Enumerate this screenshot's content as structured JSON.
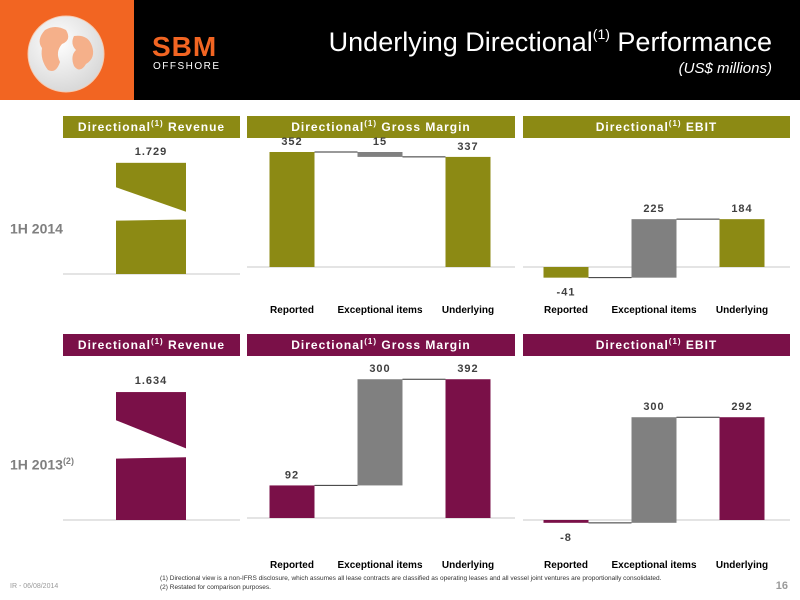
{
  "header": {
    "title_main": "Underlying Directional",
    "title_sup": "(1)",
    "title_tail": " Performance",
    "subtitle": "(US$ millions)",
    "logo_top": "SBM",
    "logo_bottom": "OFFSHORE"
  },
  "colors": {
    "olive": "#8c8a14",
    "plum": "#7a1048",
    "gray": "#808080",
    "orange": "#f26522"
  },
  "rows": [
    {
      "label": "1H 2014",
      "label_sup": ""
    },
    {
      "label": "1H 2013",
      "label_sup": "(2)"
    }
  ],
  "panel_titles": {
    "revenue": {
      "text": "Directional",
      "sup": "(1)",
      "tail": " Revenue"
    },
    "gross_margin": {
      "text": "Directional",
      "sup": "(1)",
      "tail": " Gross Margin"
    },
    "ebit": {
      "text": "Directional",
      "sup": "(1)",
      "tail": " EBIT"
    }
  },
  "chart_data": [
    {
      "type": "bar",
      "row": "1H 2014",
      "panel": "Directional Revenue",
      "categories": [
        ""
      ],
      "values": [
        1729
      ],
      "value_labels": [
        "1.729"
      ],
      "axis_break": true
    },
    {
      "type": "bar",
      "row": "1H 2014",
      "panel": "Directional Gross Margin",
      "waterfall": true,
      "categories": [
        "Reported",
        "Exceptional items",
        "Underlying"
      ],
      "values": [
        352,
        -15,
        337
      ],
      "value_labels": [
        "352",
        "15",
        "337"
      ]
    },
    {
      "type": "bar",
      "row": "1H 2014",
      "panel": "Directional EBIT",
      "waterfall": true,
      "categories": [
        "Reported",
        "Exceptional items",
        "Underlying"
      ],
      "values": [
        -41,
        225,
        184
      ],
      "value_labels": [
        "-41",
        "225",
        "184"
      ]
    },
    {
      "type": "bar",
      "row": "1H 2013",
      "panel": "Directional Revenue",
      "categories": [
        ""
      ],
      "values": [
        1634
      ],
      "value_labels": [
        "1.634"
      ],
      "axis_break": true
    },
    {
      "type": "bar",
      "row": "1H 2013",
      "panel": "Directional Gross Margin",
      "waterfall": true,
      "categories": [
        "Reported",
        "Exceptional items",
        "Underlying"
      ],
      "values": [
        92,
        300,
        392
      ],
      "value_labels": [
        "92",
        "300",
        "392"
      ]
    },
    {
      "type": "bar",
      "row": "1H 2013",
      "panel": "Directional EBIT",
      "waterfall": true,
      "categories": [
        "Reported",
        "Exceptional items",
        "Underlying"
      ],
      "values": [
        -8,
        300,
        292
      ],
      "value_labels": [
        "-8",
        "300",
        "292"
      ]
    }
  ],
  "footer": {
    "left": "IR - 06/08/2014",
    "note1": "(1) Directional view is a non-IFRS disclosure, which assumes all lease contracts are classified as operating leases and all vessel joint ventures are proportionally consolidated.",
    "note2": "(2) Restated for comparison purposes.",
    "page": "16"
  }
}
